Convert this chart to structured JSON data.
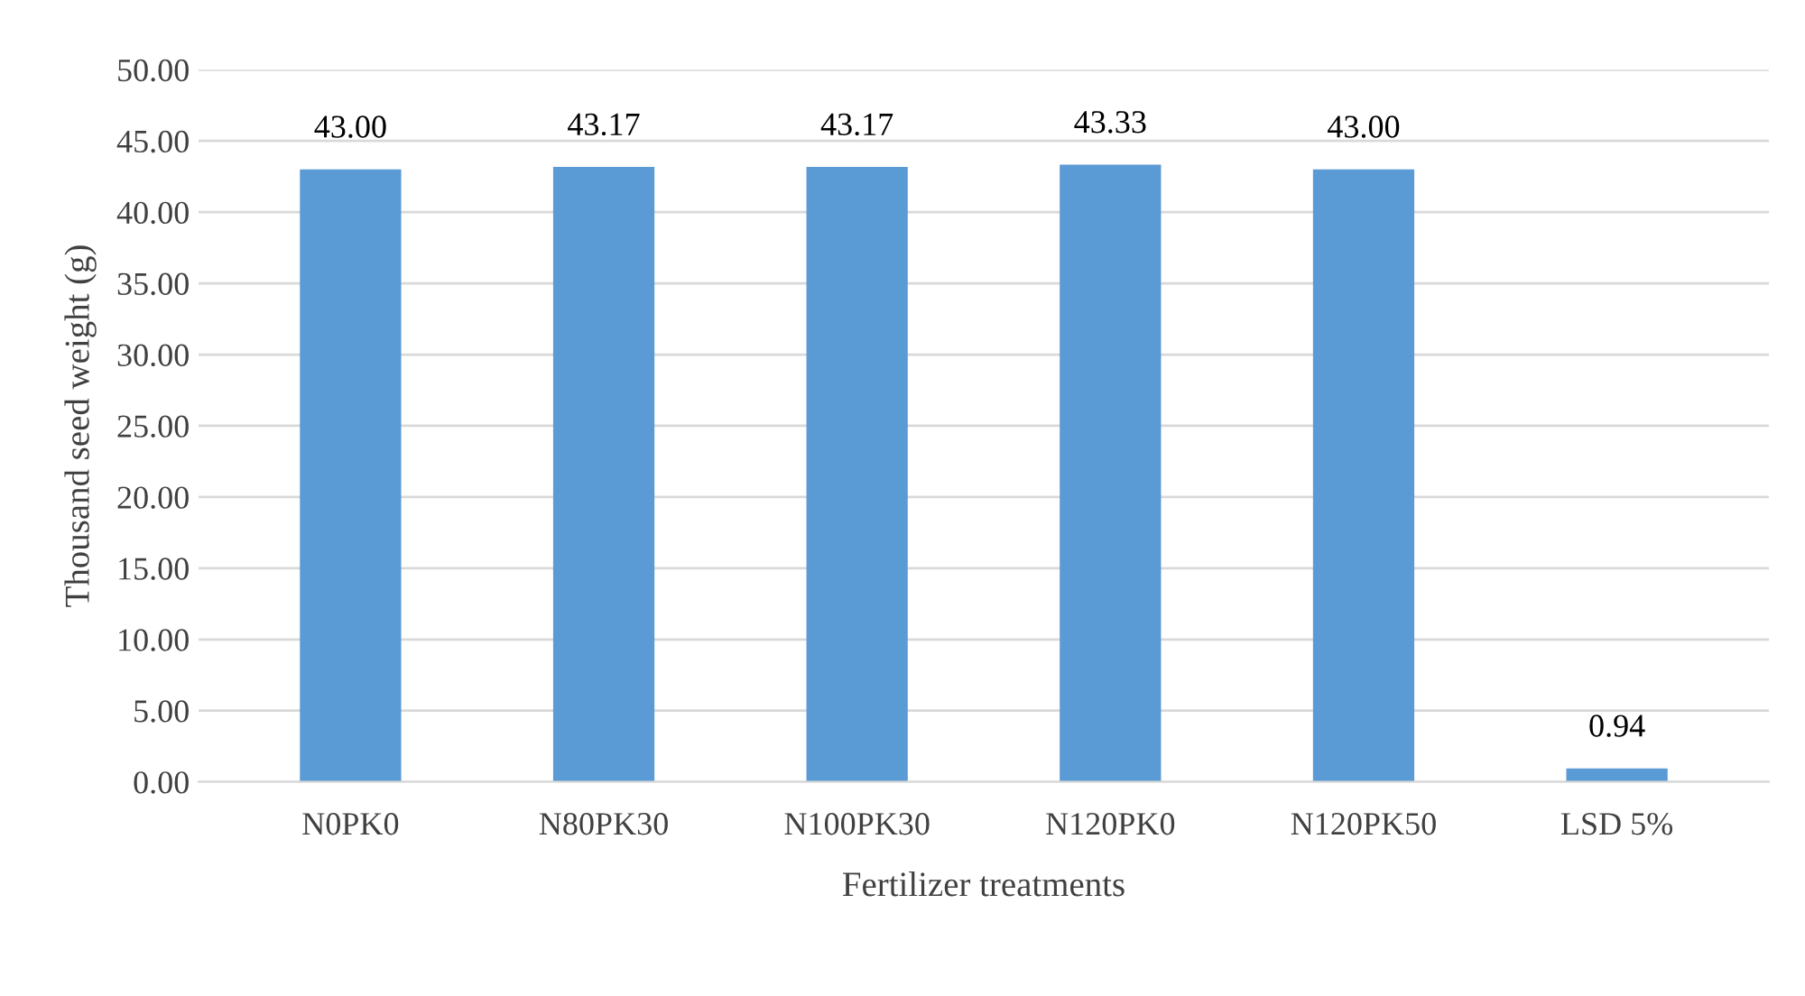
{
  "chart_data": {
    "type": "bar",
    "xlabel": "Fertilizer treatments",
    "ylabel": "Thousand seed weight (g)",
    "categories": [
      "N0PK0",
      "N80PK30",
      "N100PK30",
      "N120PK0",
      "N120PK50",
      "LSD 5%"
    ],
    "values": [
      43.0,
      43.17,
      43.17,
      43.33,
      43.0,
      0.94
    ],
    "value_labels": [
      "43.00",
      "43.17",
      "43.17",
      "43.33",
      "43.00",
      "0.94"
    ],
    "color": "#5b9bd5",
    "ylim": [
      0,
      50
    ],
    "yticks": [
      {
        "value": 0,
        "label": "0.00"
      },
      {
        "value": 5,
        "label": "5.00"
      },
      {
        "value": 10,
        "label": "10.00"
      },
      {
        "value": 15,
        "label": "15.00"
      },
      {
        "value": 20,
        "label": "20.00"
      },
      {
        "value": 25,
        "label": "25.00"
      },
      {
        "value": 30,
        "label": "30.00"
      },
      {
        "value": 35,
        "label": "35.00"
      },
      {
        "value": 40,
        "label": "40.00"
      },
      {
        "value": 45,
        "label": "45.00"
      },
      {
        "value": 50,
        "label": "50.00"
      }
    ],
    "grid": "y",
    "legend": false
  }
}
